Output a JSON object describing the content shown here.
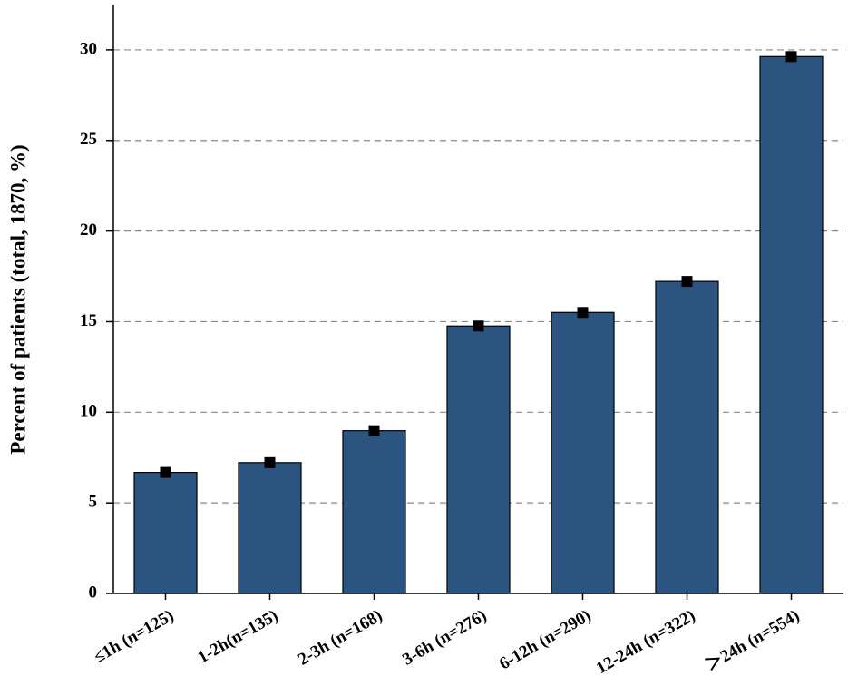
{
  "chart_data": {
    "type": "bar",
    "y_label": "Percent of patients (total, 1870, %)",
    "categories": [
      "≤1h (n=125)",
      "1-2h(n=135)",
      "2-3h (n=168)",
      "3-6h (n=276)",
      "6-12h (n=290)",
      "12-24h (n=322)",
      "＞24h (n=554)"
    ],
    "values": [
      6.68,
      7.22,
      8.98,
      14.76,
      15.51,
      17.22,
      29.63
    ],
    "color": "#2b5580",
    "ylim": [
      0,
      32.5
    ],
    "yticks": [
      0,
      5,
      10,
      15,
      20,
      25,
      30
    ],
    "grid": true
  }
}
